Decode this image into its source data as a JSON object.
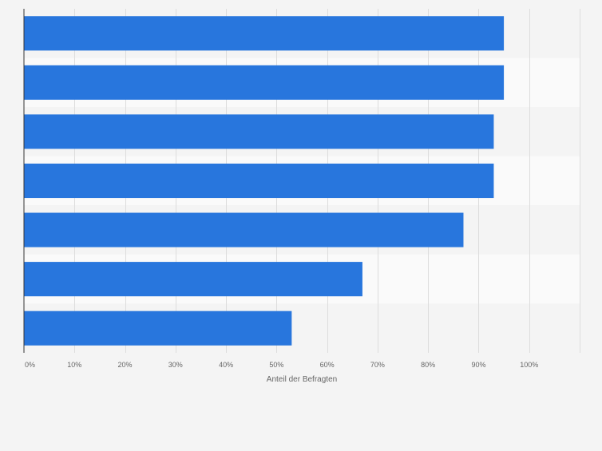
{
  "chart_data": {
    "type": "bar",
    "orientation": "horizontal",
    "categories": [
      "",
      "",
      "",
      "",
      "",
      "",
      ""
    ],
    "values": [
      95,
      95,
      93,
      93,
      87,
      67,
      53
    ],
    "xlabel": "Anteil der Befragten",
    "ylabel": "",
    "xlim": [
      0,
      110
    ],
    "x_ticks": [
      "0%",
      "10%",
      "20%",
      "30%",
      "40%",
      "50%",
      "60%",
      "70%",
      "80%",
      "90%",
      "100%"
    ],
    "grid": true,
    "colors": {
      "bar": "#2876dd",
      "band_light": "#fafafa",
      "band_dark": "#f4f4f4",
      "grid": "#dddddd",
      "axis": "#333333",
      "tick_text": "#666666"
    }
  }
}
